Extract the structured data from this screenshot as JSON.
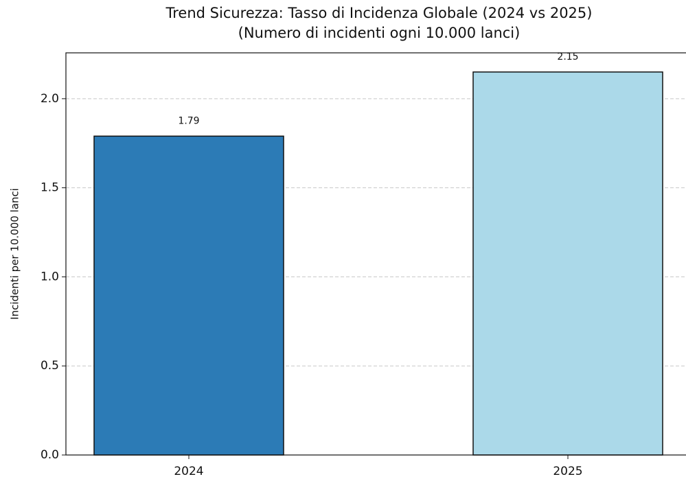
{
  "chart_data": {
    "type": "bar",
    "title": [
      "Trend Sicurezza: Tasso di Incidenza Globale (2024 vs 2025)",
      "(Numero di incidenti ogni 10.000 lanci)"
    ],
    "ylabel": "Incidenti per 10.000 lanci",
    "categories": [
      "2024",
      "2025"
    ],
    "values": [
      1.79,
      2.15
    ],
    "colors": [
      "#2c7bb6",
      "#abd9e9"
    ],
    "ylim": [
      0,
      2.2575
    ],
    "yticks": [
      {
        "value": 0,
        "label": "0.0"
      },
      {
        "value": 0.5,
        "label": "0.5"
      },
      {
        "value": 1,
        "label": "1.0"
      },
      {
        "value": 1.5,
        "label": "1.5"
      },
      {
        "value": 2,
        "label": "2.0"
      }
    ],
    "grid": true
  }
}
